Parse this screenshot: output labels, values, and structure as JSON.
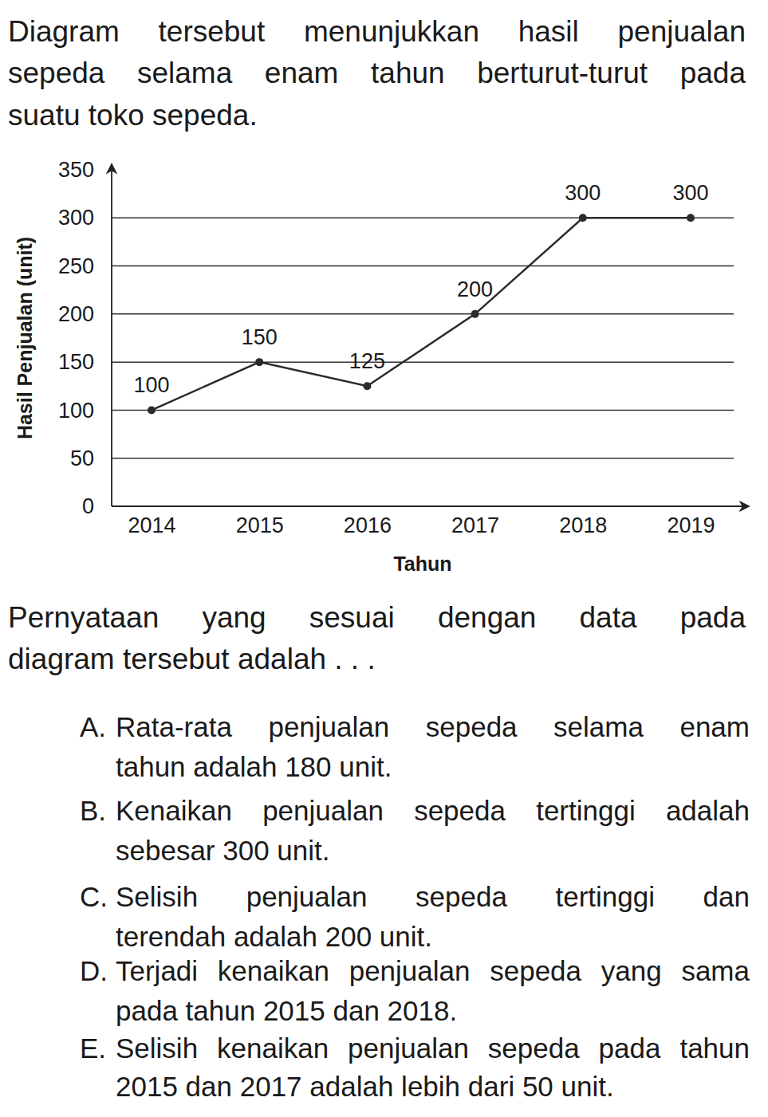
{
  "intro": {
    "lines": [
      "Diagram tersebut menunjukkan hasil penjualan",
      "sepeda selama enam tahun berturut-turut pada",
      "suatu toko sepeda."
    ]
  },
  "chart_data": {
    "type": "line",
    "x_label": "Tahun",
    "y_label": "Hasil Penjualan (unit)",
    "categories": [
      "2014",
      "2015",
      "2016",
      "2017",
      "2018",
      "2019"
    ],
    "values": [
      100,
      150,
      125,
      200,
      300,
      300
    ],
    "ylim": [
      0,
      350
    ],
    "yticks": [
      0,
      50,
      100,
      150,
      200,
      250,
      300,
      350
    ],
    "grid": true,
    "data_labels": true,
    "color": "#2b2b2b",
    "marker": "circle"
  },
  "question": {
    "lines": [
      "Pernyataan yang sesuai dengan data pada",
      "diagram tersebut adalah . . ."
    ]
  },
  "options": [
    {
      "letter": "A.",
      "lines": [
        "Rata-rata penjualan sepeda selama enam",
        "tahun adalah 180 unit."
      ]
    },
    {
      "letter": "B.",
      "lines": [
        "Kenaikan penjualan sepeda tertinggi adalah",
        "sebesar 300 unit."
      ]
    },
    {
      "letter": "C.",
      "lines": [
        "Selisih penjualan sepeda tertinggi dan",
        "terendah adalah 200 unit."
      ]
    },
    {
      "letter": "D.",
      "lines": [
        "Terjadi kenaikan penjualan sepeda yang sama",
        "pada tahun 2015 dan 2018."
      ]
    },
    {
      "letter": "E.",
      "lines": [
        "Selisih kenaikan penjualan sepeda pada tahun",
        "2015 dan 2017 adalah lebih dari 50 unit."
      ]
    }
  ]
}
